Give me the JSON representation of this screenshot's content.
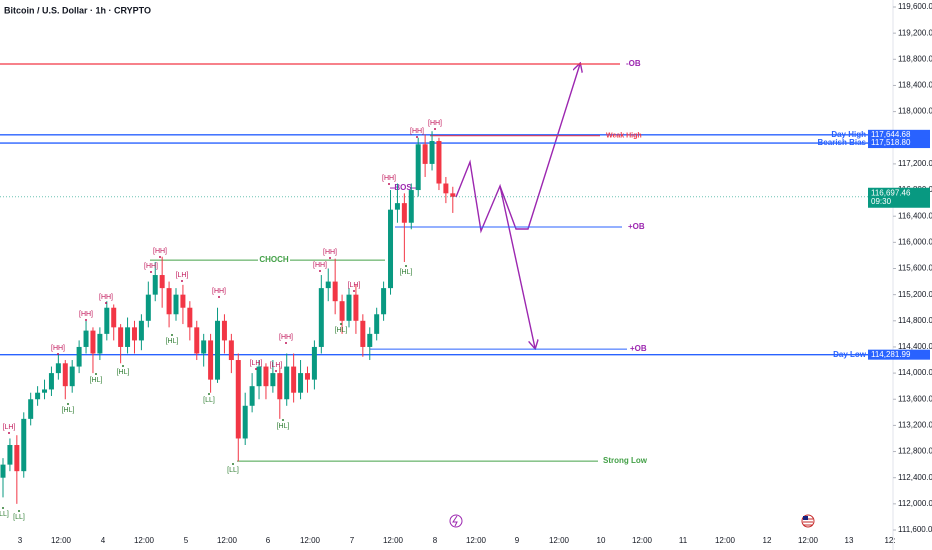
{
  "chart_data": {
    "type": "candlestick",
    "title": "Bitcoin / U.S. Dollar · 1h · CRYPTO",
    "up_color": "#089981",
    "down_color": "#f23645",
    "open": [
      112400,
      112600,
      112900,
      112500,
      113300,
      113600,
      113700,
      113750,
      114000,
      114150,
      113800,
      114100,
      114400,
      114650,
      114300,
      114600,
      115000,
      114700,
      114400,
      114700,
      114500,
      114800,
      115200,
      115500,
      115300,
      114900,
      115200,
      115000,
      114700,
      114300,
      114500,
      113900,
      114800,
      114500,
      114200,
      113000,
      113500,
      113800,
      114100,
      113800,
      114000,
      113600,
      114100,
      113700,
      114000,
      113900,
      114400,
      115300,
      115400,
      115100,
      114800,
      115200,
      114800,
      114400,
      114600,
      114900,
      115300,
      116500,
      116600,
      116300,
      116800,
      117500,
      117200,
      117550,
      116900,
      116750
    ],
    "high": [
      112700,
      113000,
      113050,
      113400,
      113700,
      113800,
      113900,
      114100,
      114300,
      114200,
      114200,
      114500,
      114800,
      114700,
      114700,
      115100,
      115050,
      114750,
      114850,
      114800,
      114900,
      115400,
      115700,
      115780,
      115400,
      115300,
      115350,
      115100,
      114800,
      114600,
      114600,
      115000,
      114900,
      114600,
      114300,
      113700,
      114000,
      114200,
      114150,
      114200,
      114100,
      114300,
      114300,
      114200,
      114100,
      114500,
      115500,
      115600,
      115750,
      115200,
      115300,
      115350,
      114900,
      114700,
      115000,
      115400,
      116800,
      116900,
      116750,
      116900,
      117600,
      117650,
      117700,
      117600,
      117000,
      116850
    ],
    "low": [
      112100,
      112500,
      112000,
      112400,
      113200,
      113500,
      113600,
      113650,
      113900,
      113600,
      113700,
      114000,
      114300,
      114000,
      114200,
      114500,
      114500,
      114150,
      114300,
      114300,
      114350,
      114700,
      115100,
      115000,
      114700,
      114800,
      114750,
      114500,
      114200,
      114100,
      113700,
      113850,
      114300,
      114000,
      112650,
      112900,
      113400,
      113600,
      113600,
      113700,
      113300,
      113500,
      113550,
      113600,
      113700,
      113750,
      114300,
      115100,
      114900,
      114600,
      114700,
      114600,
      114250,
      114200,
      114500,
      114800,
      115200,
      116300,
      115700,
      116200,
      116700,
      117000,
      117100,
      116800,
      116600,
      116450
    ],
    "close": [
      112600,
      112900,
      112500,
      113300,
      113600,
      113700,
      113750,
      114000,
      114150,
      113800,
      114100,
      114400,
      114650,
      114300,
      114600,
      115000,
      114700,
      114400,
      114700,
      114500,
      114800,
      115200,
      115500,
      115300,
      114900,
      115200,
      115000,
      114700,
      114300,
      114500,
      113900,
      114800,
      114500,
      114200,
      113000,
      113500,
      113800,
      114100,
      113800,
      114000,
      113600,
      114100,
      113700,
      114000,
      113900,
      114400,
      115300,
      115400,
      115100,
      114800,
      115200,
      114800,
      114400,
      114600,
      114900,
      115300,
      116500,
      116600,
      116300,
      116800,
      117500,
      117200,
      117550,
      116900,
      116750,
      116697.46
    ],
    "last_price": {
      "value": 116697.46,
      "value_label": "116,697.46",
      "countdown": "09:30"
    },
    "xticks": [
      "3",
      "12:00",
      "4",
      "12:00",
      "5",
      "12:00",
      "6",
      "12:00",
      "7",
      "12:00",
      "8",
      "12:00",
      "9",
      "12:00",
      "10",
      "12:00",
      "11",
      "12:00",
      "12",
      "12:00",
      "13",
      "12:"
    ],
    "ylim": [
      111600,
      119600
    ],
    "yticks": [
      {
        "value": 119600,
        "label": "119,600.00"
      },
      {
        "value": 119200,
        "label": "119,200.00"
      },
      {
        "value": 118800,
        "label": "118,800.00"
      },
      {
        "value": 118400,
        "label": "118,400.00"
      },
      {
        "value": 118000,
        "label": "118,000.00"
      },
      {
        "value": 117200,
        "label": "117,200.00"
      },
      {
        "value": 116800,
        "label": "116,800.00"
      },
      {
        "value": 116400,
        "label": "116,400.00"
      },
      {
        "value": 116000,
        "label": "116,000.00"
      },
      {
        "value": 115600,
        "label": "115,600.00"
      },
      {
        "value": 115200,
        "label": "115,200.00"
      },
      {
        "value": 114800,
        "label": "114,800.00"
      },
      {
        "value": 114400,
        "label": "114,400.00"
      },
      {
        "value": 114000,
        "label": "114,000.00"
      },
      {
        "value": 113600,
        "label": "113,600.00"
      },
      {
        "value": 113200,
        "label": "113,200.00"
      },
      {
        "value": 112800,
        "label": "112,800.00"
      },
      {
        "value": 112400,
        "label": "112,400.00"
      },
      {
        "value": 112000,
        "label": "112,000.00"
      },
      {
        "value": 111600,
        "label": "111,600.00"
      }
    ],
    "grid": false,
    "levels": [
      {
        "label": "-OB",
        "value": 118728,
        "color": "#f23645"
      },
      {
        "label": "Day High",
        "value": 117644.68,
        "value_label": "117,644.68",
        "color": "#2962ff"
      },
      {
        "label": "Weak High",
        "value": 117630,
        "color": "#f23645"
      },
      {
        "label": "Bearish Bias",
        "value": 117518.8,
        "value_label": "117,518.80",
        "color": "#2962ff"
      },
      {
        "label": "BOS",
        "value": 116831,
        "color": "#9c27b0"
      },
      {
        "label": "+OB",
        "value": 116234,
        "color": "#2962ff"
      },
      {
        "label": "CHOCH",
        "value": 115729,
        "color": "#43a047"
      },
      {
        "label": "+OB",
        "value": 114367,
        "color": "#2962ff"
      },
      {
        "label": "Day Low",
        "value": 114281.99,
        "value_label": "114,281.99",
        "color": "#2962ff"
      },
      {
        "label": "Strong Low",
        "value": 112654,
        "color": "#43a047"
      }
    ],
    "swing_labels": [
      "[LH]",
      "[LL]",
      "[LL]",
      "[HL]",
      "[HH]",
      "[HL]",
      "[HH]",
      "[HH]",
      "[HL]",
      "[HH]",
      "[HH]",
      "[LH]",
      "[HL]",
      "[HH]",
      "[LL]",
      "[LH]",
      "[LH]",
      "[HH]",
      "[HL]",
      "[HH]",
      "[HH]",
      "[LH]",
      "[HL]",
      "[HH]",
      "[HL]",
      "[HH]",
      "[HH]",
      "[LL]"
    ]
  }
}
